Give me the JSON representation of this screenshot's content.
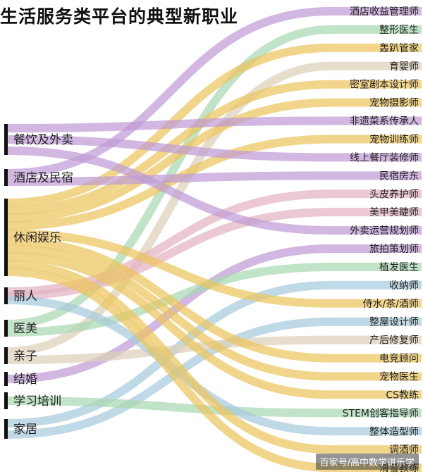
{
  "title": "生活服务类平台的典型新职业",
  "watermark": "百家号/高中数学讲乐学",
  "colors": {
    "purple": "#bf9bd6",
    "yellow": "#ecc55e",
    "green": "#a9d8b2",
    "blue": "#a7cbdc",
    "pink": "#e3b3c3",
    "tan": "#dcd0b8"
  },
  "chart_data": {
    "type": "sankey",
    "sources": [
      {
        "name": "餐饮及外卖"
      },
      {
        "name": "酒店及民宿"
      },
      {
        "name": "休闲娱乐"
      },
      {
        "name": "丽人"
      },
      {
        "name": "医美"
      },
      {
        "name": "亲子"
      },
      {
        "name": "结婚"
      },
      {
        "name": "学习培训"
      },
      {
        "name": "家居"
      }
    ],
    "targets": [
      {
        "name": "酒店收益管理师"
      },
      {
        "name": "整形医生"
      },
      {
        "name": "轰趴管家"
      },
      {
        "name": "育婴师"
      },
      {
        "name": "密室剧本设计师"
      },
      {
        "name": "宠物摄影师"
      },
      {
        "name": "非遗菜系传承人"
      },
      {
        "name": "宠物训练师"
      },
      {
        "name": "线上餐厅装修师"
      },
      {
        "name": "民宿房东"
      },
      {
        "name": "头皮养护师"
      },
      {
        "name": "美甲美睫师"
      },
      {
        "name": "外卖运营规划师"
      },
      {
        "name": "旅拍策划师"
      },
      {
        "name": "植发医生"
      },
      {
        "name": "收纳师"
      },
      {
        "name": "侍水/茶/酒师"
      },
      {
        "name": "整屋设计师"
      },
      {
        "name": "产后修复师"
      },
      {
        "name": "电竞顾问"
      },
      {
        "name": "宠物医生"
      },
      {
        "name": "CS教练"
      },
      {
        "name": "STEM创客指导师"
      },
      {
        "name": "整体造型师"
      },
      {
        "name": "调酒师"
      },
      {
        "name": "滑雪教练"
      }
    ],
    "links": [
      {
        "source": 1,
        "target": 0,
        "value": 1,
        "color": "purple"
      },
      {
        "source": 4,
        "target": 1,
        "value": 1,
        "color": "green"
      },
      {
        "source": 2,
        "target": 2,
        "value": 1,
        "color": "yellow"
      },
      {
        "source": 5,
        "target": 3,
        "value": 1,
        "color": "tan"
      },
      {
        "source": 2,
        "target": 4,
        "value": 1,
        "color": "yellow"
      },
      {
        "source": 2,
        "target": 5,
        "value": 1,
        "color": "yellow"
      },
      {
        "source": 0,
        "target": 6,
        "value": 1,
        "color": "purple"
      },
      {
        "source": 2,
        "target": 7,
        "value": 1,
        "color": "yellow"
      },
      {
        "source": 0,
        "target": 8,
        "value": 1,
        "color": "purple"
      },
      {
        "source": 1,
        "target": 9,
        "value": 1,
        "color": "purple"
      },
      {
        "source": 3,
        "target": 10,
        "value": 1,
        "color": "pink"
      },
      {
        "source": 3,
        "target": 11,
        "value": 1,
        "color": "pink"
      },
      {
        "source": 0,
        "target": 12,
        "value": 1,
        "color": "purple"
      },
      {
        "source": 6,
        "target": 13,
        "value": 1,
        "color": "purple"
      },
      {
        "source": 4,
        "target": 14,
        "value": 1,
        "color": "green"
      },
      {
        "source": 8,
        "target": 15,
        "value": 1,
        "color": "blue"
      },
      {
        "source": 2,
        "target": 16,
        "value": 1,
        "color": "yellow"
      },
      {
        "source": 8,
        "target": 17,
        "value": 1,
        "color": "blue"
      },
      {
        "source": 5,
        "target": 18,
        "value": 1,
        "color": "tan"
      },
      {
        "source": 2,
        "target": 19,
        "value": 1,
        "color": "yellow"
      },
      {
        "source": 2,
        "target": 20,
        "value": 1,
        "color": "yellow"
      },
      {
        "source": 2,
        "target": 21,
        "value": 1,
        "color": "yellow"
      },
      {
        "source": 7,
        "target": 22,
        "value": 1,
        "color": "green"
      },
      {
        "source": 3,
        "target": 23,
        "value": 1,
        "color": "blue"
      },
      {
        "source": 2,
        "target": 24,
        "value": 1,
        "color": "yellow"
      },
      {
        "source": 2,
        "target": 25,
        "value": 1,
        "color": "yellow"
      }
    ]
  }
}
